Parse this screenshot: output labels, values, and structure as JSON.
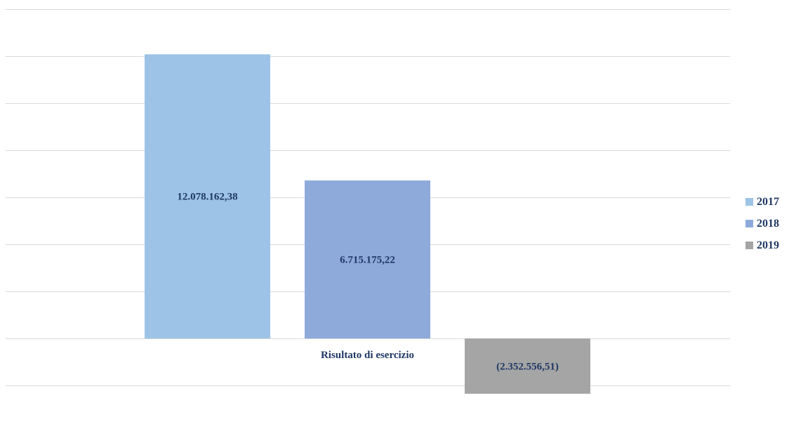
{
  "chart_data": {
    "type": "bar",
    "categories": [
      "Risultato di esercizio"
    ],
    "series": [
      {
        "name": "2017",
        "values": [
          12078162.38
        ],
        "color": "#9dc3e6",
        "label": "12.078.162,38"
      },
      {
        "name": "2018",
        "values": [
          6715175.22
        ],
        "color": "#8eaadb",
        "label": "6.715.175,22"
      },
      {
        "name": "2019",
        "values": [
          -2352556.51
        ],
        "color": "#a5a5a5",
        "label": "(2.352.556,51)"
      }
    ],
    "ylim": [
      -2000000,
      14000000
    ],
    "grid": true,
    "legend_position": "right",
    "title": "",
    "xlabel": "",
    "ylabel": ""
  }
}
